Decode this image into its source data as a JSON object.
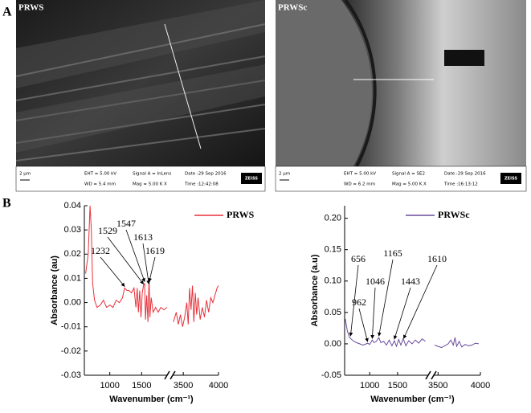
{
  "figure": {
    "panel_labels": [
      "A",
      "B"
    ]
  },
  "sem_images": [
    {
      "label": "PRWS",
      "scale_bar": "2 μm",
      "eht": "EHT = 5.00 kV",
      "wd": "WD = 5.4 mm",
      "signal": "Signal A = InLens",
      "mag": "Mag =  5.00 K X",
      "date": "Date :29 Sep 2016",
      "time": "Time :12:42:08",
      "brand": "ZEISS"
    },
    {
      "label": "PRWSc",
      "scale_bar": "2 μm",
      "eht": "EHT = 5.00 kV",
      "wd": "WD = 6.2 mm",
      "signal": "Signal A = SE2",
      "mag": "Mag =  5.00 K X",
      "date": "Date :29 Sep 2016",
      "time": "Time :16:13:12",
      "brand": "ZEISS"
    }
  ],
  "chart_data": [
    {
      "type": "line",
      "xlabel": "Wavenumber (cm⁻¹)",
      "ylabel": "Absorbance (au)",
      "xlim": [
        600,
        4000
      ],
      "xbreak": [
        1900,
        3350
      ],
      "xticks": [
        1000,
        1500,
        3500,
        4000
      ],
      "ylim": [
        -0.03,
        0.04
      ],
      "yticks": [
        -0.03,
        -0.02,
        -0.01,
        {
          "value": 0,
          "label": "0.00"
        },
        0.01,
        0.02,
        0.03,
        0.04
      ],
      "legend": "upper right",
      "series": [
        {
          "name": "PRWS",
          "color": "#e8303a",
          "x": [
            620,
            660,
            690,
            710,
            730,
            760,
            800,
            850,
            900,
            950,
            1000,
            1050,
            1100,
            1150,
            1200,
            1232,
            1270,
            1300,
            1340,
            1380,
            1410,
            1430,
            1450,
            1470,
            1490,
            1510,
            1529,
            1547,
            1560,
            1580,
            1600,
            1613,
            1619,
            1630,
            1650,
            1680,
            1720,
            1760,
            1800,
            1850,
            1900,
            2500,
            3360,
            3400,
            3430,
            3460,
            3490,
            3520,
            3550,
            3570,
            3590,
            3610,
            3630,
            3650,
            3670,
            3690,
            3710,
            3740,
            3770,
            3800,
            3830,
            3860,
            3890,
            3920,
            3950,
            3980,
            4000
          ],
          "values": [
            0.012,
            0.02,
            0.04,
            0.03,
            0.008,
            0.001,
            -0.002,
            -0.001,
            0.001,
            -0.002,
            -0.001,
            -0.002,
            0.001,
            0.0,
            0.002,
            0.006,
            0.005,
            0.005,
            0.004,
            0.006,
            -0.002,
            0.006,
            -0.004,
            0.005,
            -0.006,
            0.004,
            0.007,
            0.008,
            -0.007,
            0.003,
            -0.008,
            0.007,
            0.008,
            -0.006,
            0.002,
            -0.004,
            -0.002,
            -0.004,
            -0.002,
            -0.003,
            -0.002,
            null,
            -0.008,
            -0.004,
            -0.009,
            -0.005,
            -0.01,
            -0.006,
            0.0,
            -0.009,
            0.006,
            -0.003,
            0.007,
            -0.008,
            0.004,
            -0.005,
            0.002,
            -0.007,
            -0.002,
            -0.006,
            0.001,
            -0.004,
            0.002,
            0.0,
            0.003,
            0.006,
            0.007
          ]
        }
      ],
      "annotations": [
        1232,
        1529,
        1547,
        1613,
        1619
      ]
    },
    {
      "type": "line",
      "xlabel": "Wavenumber (cm⁻¹)",
      "ylabel": "Absorbance (a.u)",
      "xlim": [
        550,
        4000
      ],
      "xbreak": [
        2050,
        3450
      ],
      "xticks": [
        1000,
        1500,
        3500,
        4000
      ],
      "ylim": [
        -0.05,
        0.22
      ],
      "yticks": [
        -0.05,
        {
          "value": 0,
          "label": "0.00"
        },
        0.05,
        {
          "value": 0.1,
          "label": "0.10"
        },
        0.15,
        {
          "value": 0.2,
          "label": "0.20"
        }
      ],
      "legend": "upper right",
      "series": [
        {
          "name": "PRWSc",
          "color": "#6a4c9c",
          "x": [
            560,
            580,
            600,
            640,
            700,
            760,
            820,
            880,
            940,
            962,
            1000,
            1046,
            1080,
            1120,
            1165,
            1200,
            1250,
            1300,
            1350,
            1400,
            1443,
            1480,
            1520,
            1560,
            1600,
            1610,
            1650,
            1700,
            1760,
            1820,
            1880,
            1940,
            2000,
            2700,
            3460,
            3500,
            3540,
            3580,
            3620,
            3650,
            3680,
            3700,
            3720,
            3750,
            3780,
            3820,
            3860,
            3900,
            3940,
            3980
          ],
          "values": [
            0.04,
            0.03,
            0.02,
            0.01,
            0.005,
            0.002,
            0.0,
            -0.002,
            0.0,
            0.001,
            -0.001,
            0.006,
            0.002,
            0.004,
            0.01,
            0.002,
            0.004,
            -0.002,
            0.006,
            -0.003,
            0.005,
            -0.004,
            0.007,
            -0.002,
            0.008,
            0.006,
            -0.003,
            0.005,
            0.0,
            0.006,
            0.001,
            0.008,
            0.004,
            null,
            -0.002,
            -0.004,
            -0.006,
            -0.003,
            0.0,
            0.006,
            -0.002,
            0.01,
            -0.004,
            0.004,
            -0.005,
            -0.001,
            -0.003,
            -0.002,
            0.001,
            0.0
          ]
        }
      ],
      "annotations": [
        656,
        962,
        1046,
        1165,
        1443,
        1610
      ]
    }
  ]
}
